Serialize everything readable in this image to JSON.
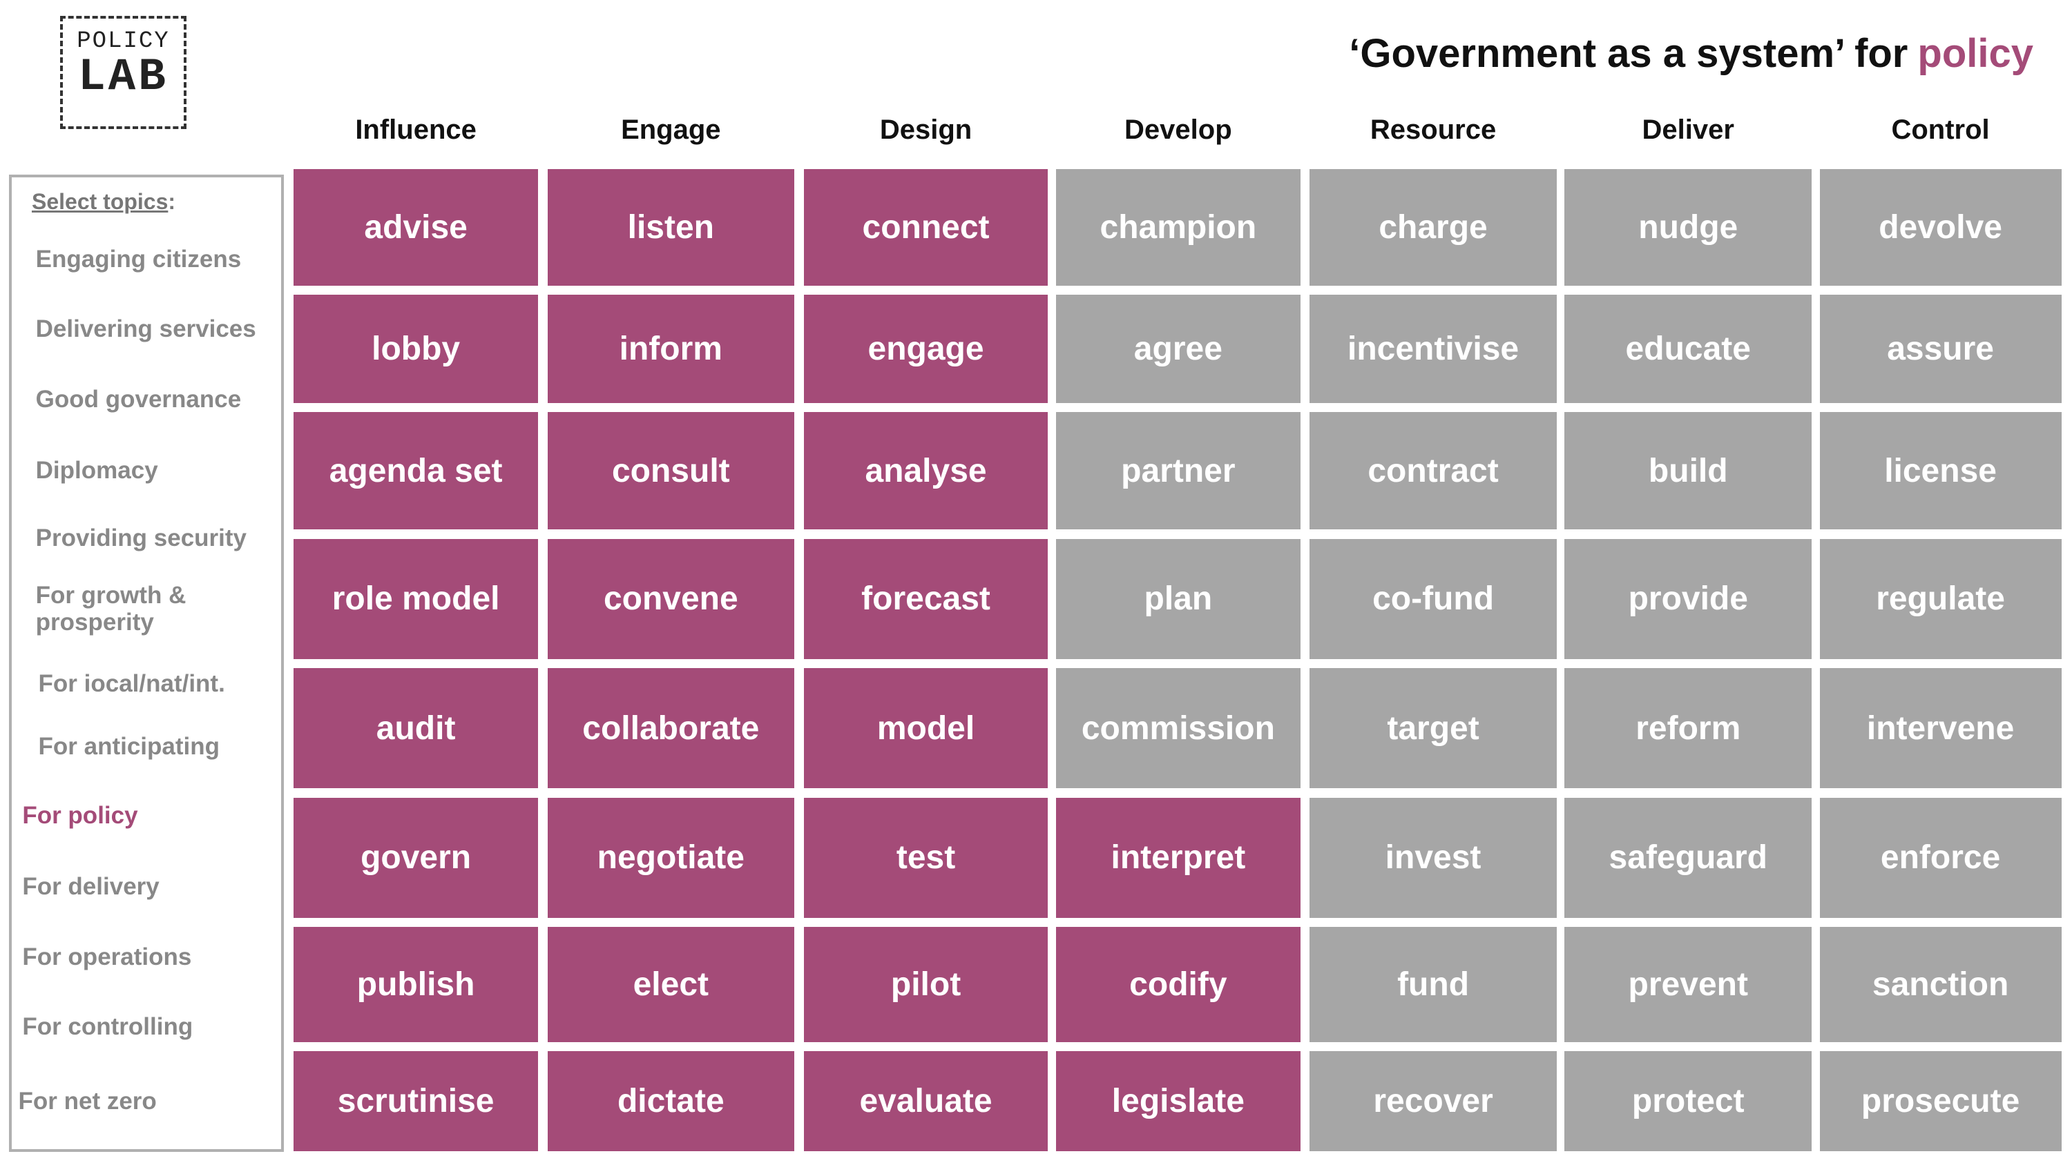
{
  "logo": {
    "line1": "POLICY",
    "line2": "LAB"
  },
  "title": {
    "text": "‘Government as a system’ for",
    "highlight": "policy"
  },
  "colors": {
    "active": "#a44b78",
    "inactive": "#a6a6a6"
  },
  "sidebar": {
    "heading": "Select topics",
    "heading_suffix": ":",
    "topics": [
      {
        "text": "Engaging citizens",
        "active": false
      },
      {
        "text": "Delivering services",
        "active": false
      },
      {
        "text": "Good governance",
        "active": false
      },
      {
        "text": "Diplomacy",
        "active": false
      },
      {
        "text": "Providing security",
        "active": false
      },
      {
        "text": "For growth & prosperity",
        "active": false
      },
      {
        "text": "For iocal/nat/int.",
        "active": false
      },
      {
        "text": "For anticipating",
        "active": false
      },
      {
        "text": "For policy",
        "active": true
      },
      {
        "text": "For delivery",
        "active": false
      },
      {
        "text": "For operations",
        "active": false
      },
      {
        "text": "For controlling",
        "active": false
      },
      {
        "text": "For net zero",
        "active": false
      }
    ]
  },
  "grid": {
    "columns": [
      {
        "header": "Influence",
        "cells": [
          {
            "text": "advise",
            "active": true
          },
          {
            "text": "lobby",
            "active": true
          },
          {
            "text": "agenda set",
            "active": true
          },
          {
            "text": "role model",
            "active": true
          },
          {
            "text": "audit",
            "active": true
          },
          {
            "text": "govern",
            "active": true
          },
          {
            "text": "publish",
            "active": true
          },
          {
            "text": "scrutinise",
            "active": true
          }
        ]
      },
      {
        "header": "Engage",
        "cells": [
          {
            "text": "listen",
            "active": true
          },
          {
            "text": "inform",
            "active": true
          },
          {
            "text": "consult",
            "active": true
          },
          {
            "text": "convene",
            "active": true
          },
          {
            "text": "collaborate",
            "active": true
          },
          {
            "text": "negotiate",
            "active": true
          },
          {
            "text": "elect",
            "active": true
          },
          {
            "text": "dictate",
            "active": true
          }
        ]
      },
      {
        "header": "Design",
        "cells": [
          {
            "text": "connect",
            "active": true
          },
          {
            "text": "engage",
            "active": true
          },
          {
            "text": "analyse",
            "active": true
          },
          {
            "text": "forecast",
            "active": true
          },
          {
            "text": "model",
            "active": true
          },
          {
            "text": "test",
            "active": true
          },
          {
            "text": "pilot",
            "active": true
          },
          {
            "text": "evaluate",
            "active": true
          }
        ]
      },
      {
        "header": "Develop",
        "cells": [
          {
            "text": "champion",
            "active": false
          },
          {
            "text": "agree",
            "active": false
          },
          {
            "text": "partner",
            "active": false
          },
          {
            "text": "plan",
            "active": false
          },
          {
            "text": "commission",
            "active": false
          },
          {
            "text": "interpret",
            "active": true
          },
          {
            "text": "codify",
            "active": true
          },
          {
            "text": "legislate",
            "active": true
          }
        ]
      },
      {
        "header": "Resource",
        "cells": [
          {
            "text": "charge",
            "active": false
          },
          {
            "text": "incentivise",
            "active": false
          },
          {
            "text": "contract",
            "active": false
          },
          {
            "text": "co-fund",
            "active": false
          },
          {
            "text": "target",
            "active": false
          },
          {
            "text": "invest",
            "active": false
          },
          {
            "text": "fund",
            "active": false
          },
          {
            "text": "recover",
            "active": false
          }
        ]
      },
      {
        "header": "Deliver",
        "cells": [
          {
            "text": "nudge",
            "active": false
          },
          {
            "text": "educate",
            "active": false
          },
          {
            "text": "build",
            "active": false
          },
          {
            "text": "provide",
            "active": false
          },
          {
            "text": "reform",
            "active": false
          },
          {
            "text": "safeguard",
            "active": false
          },
          {
            "text": "prevent",
            "active": false
          },
          {
            "text": "protect",
            "active": false
          }
        ]
      },
      {
        "header": "Control",
        "cells": [
          {
            "text": "devolve",
            "active": false
          },
          {
            "text": "assure",
            "active": false
          },
          {
            "text": "license",
            "active": false
          },
          {
            "text": "regulate",
            "active": false
          },
          {
            "text": "intervene",
            "active": false
          },
          {
            "text": "enforce",
            "active": false
          },
          {
            "text": "sanction",
            "active": false
          },
          {
            "text": "prosecute",
            "active": false
          }
        ]
      }
    ]
  }
}
